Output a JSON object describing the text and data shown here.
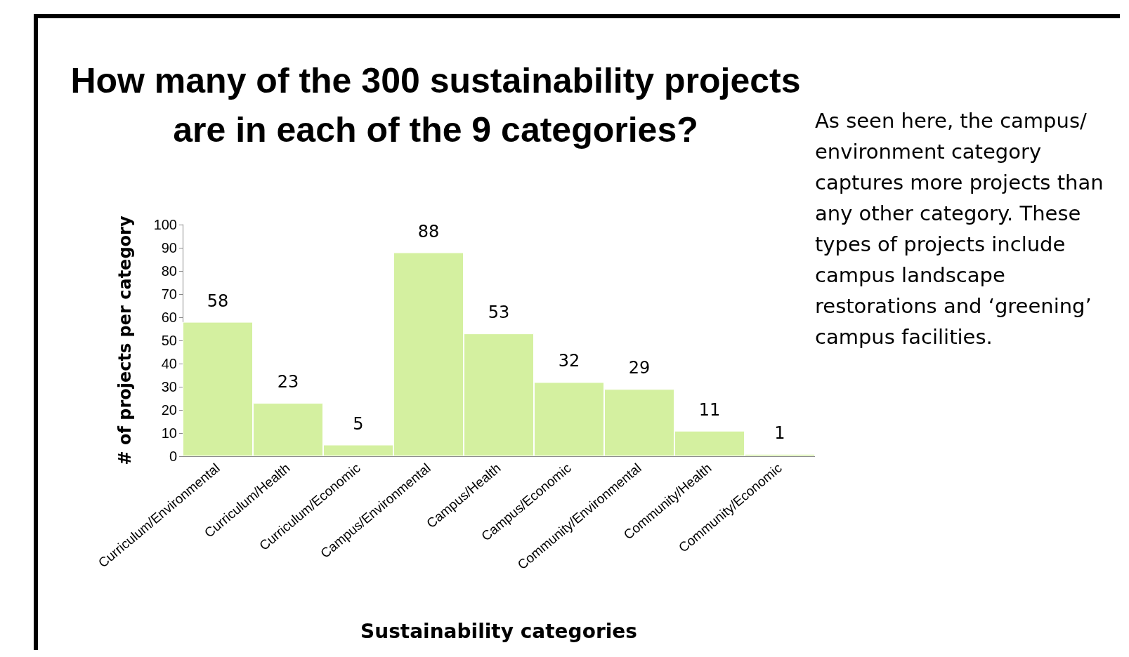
{
  "chart_data": {
    "type": "bar",
    "title": "How many of the 300 sustainability projects are in each of the 9 categories?",
    "xlabel": "Sustainability categories",
    "ylabel": "# of projects per category",
    "categories": [
      "Curriculum/Environmental",
      "Curriculum/Health",
      "Curriculum/Economic",
      "Campus/Environmental",
      "Campus/Health",
      "Campus/Economic",
      "Community/Environmental",
      "Community/Health",
      "Community/Economic"
    ],
    "values": [
      58,
      23,
      5,
      88,
      53,
      32,
      29,
      11,
      1
    ],
    "color": "#d4f0a0",
    "ylim": [
      0,
      100
    ],
    "yticks": [
      0,
      10,
      20,
      30,
      40,
      50,
      60,
      70,
      80,
      90,
      100
    ],
    "grid": false,
    "data_labels": true,
    "annotations": [
      "As seen here, the campus/ environment category captures more projects than any other category.  These types of projects include campus landscape restorations and ‘greening’ campus facilities."
    ]
  }
}
